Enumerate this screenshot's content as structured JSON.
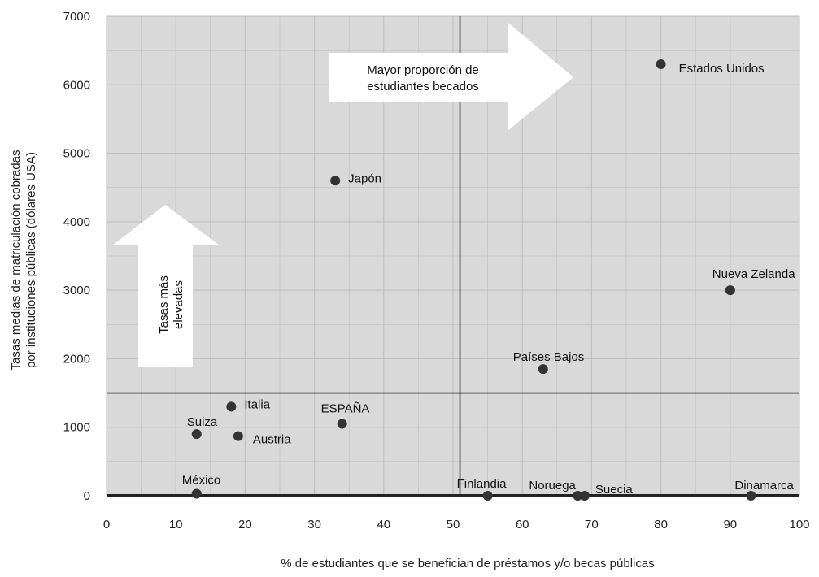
{
  "chart_data": {
    "type": "scatter",
    "title": "",
    "xlabel": "% de estudiantes que se benefician de préstamos y/o becas públicas",
    "ylabel_lines": [
      "Tasas medias de matriculación cobradas",
      "por instituciones públicas (dólares USA)"
    ],
    "xlim": [
      0,
      100
    ],
    "ylim": [
      0,
      7000
    ],
    "xticks": [
      0,
      10,
      20,
      30,
      40,
      50,
      60,
      70,
      80,
      90,
      100
    ],
    "yticks": [
      0,
      1000,
      2000,
      3000,
      4000,
      5000,
      6000,
      7000
    ],
    "grid": true,
    "reference_lines": {
      "x": 51,
      "y": 1500
    },
    "annotations": {
      "right_arrow_lines": [
        "Mayor proporción de",
        "estudiantes becados"
      ],
      "up_arrow_lines": [
        "Tasas más",
        "elevadas"
      ]
    },
    "points": [
      {
        "name": "Estados Unidos",
        "x": 80,
        "y": 6300
      },
      {
        "name": "Japón",
        "x": 33,
        "y": 4600
      },
      {
        "name": "Nueva Zelanda",
        "x": 90,
        "y": 3000
      },
      {
        "name": "Países Bajos",
        "x": 63,
        "y": 1850
      },
      {
        "name": "Italia",
        "x": 18,
        "y": 1300
      },
      {
        "name": "ESPAÑA",
        "x": 34,
        "y": 1050
      },
      {
        "name": "Suiza",
        "x": 13,
        "y": 900
      },
      {
        "name": "Austria",
        "x": 19,
        "y": 870
      },
      {
        "name": "México",
        "x": 13,
        "y": 30
      },
      {
        "name": "Finlandia",
        "x": 55,
        "y": 0
      },
      {
        "name": "Noruega",
        "x": 68,
        "y": 0
      },
      {
        "name": "Suecia",
        "x": 69,
        "y": 0
      },
      {
        "name": "Dinamarca",
        "x": 93,
        "y": 0
      }
    ],
    "colors": {
      "background": "#d9d9d9",
      "grid": "#bdbdbd",
      "point": "#333333",
      "line": "#222222"
    }
  }
}
